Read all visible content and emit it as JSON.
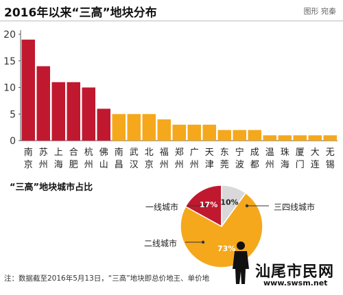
{
  "header": {
    "title": "2016年以来“三高”地块分布",
    "credit": "图形 宛秦"
  },
  "chart_data": [
    {
      "type": "bar",
      "title": "2016年以来“三高”地块分布",
      "categories": [
        "南京",
        "苏州",
        "上海",
        "合肥",
        "杭州",
        "佛山",
        "南昌",
        "武汉",
        "北京",
        "福州",
        "郑州",
        "广州",
        "天津",
        "东莞",
        "宁波",
        "成都",
        "温州",
        "珠海",
        "厦门",
        "大连",
        "无锡"
      ],
      "values": [
        19,
        14,
        11,
        11,
        10,
        6,
        5,
        5,
        5,
        4,
        3,
        3,
        3,
        2,
        2,
        2,
        1,
        1,
        1,
        1,
        1
      ],
      "ylim": [
        0,
        20
      ],
      "yticks": [
        0,
        5,
        10,
        15,
        20
      ],
      "grid": false,
      "colors": {
        "first_six": "#c0192f",
        "rest": "#f5a81c"
      }
    },
    {
      "type": "pie",
      "title": "“三高”地块城市占比",
      "slices": [
        {
          "label": "一线城市",
          "value": 17,
          "display": "17%",
          "color": "#c0192f"
        },
        {
          "label": "三四线城市",
          "value": 10,
          "display": "10%",
          "color": "#d9d9d9"
        },
        {
          "label": "二线城市",
          "value": 73,
          "display": "73%",
          "color": "#f5a81c"
        }
      ]
    }
  ],
  "footnote": "注：数据截至2016年5月13日，“三高”地块即总价地王、单价地",
  "watermark": {
    "text": "汕尾市民网",
    "url": "www.swsm.net"
  }
}
